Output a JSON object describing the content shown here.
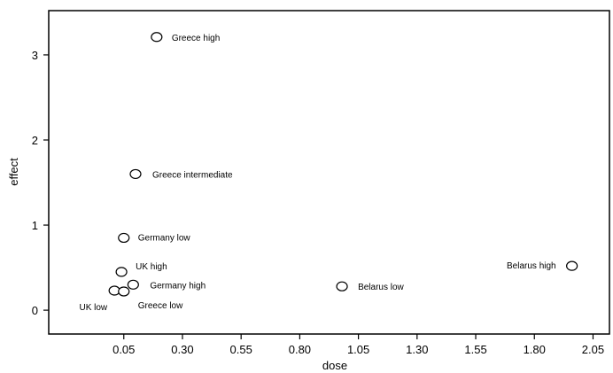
{
  "chart_data": {
    "type": "scatter",
    "xlabel": "dose",
    "ylabel": "effect",
    "xlim": [
      -0.27,
      2.12
    ],
    "ylim": [
      -0.28,
      3.52
    ],
    "xticks": [
      0.05,
      0.3,
      0.55,
      0.8,
      1.05,
      1.3,
      1.55,
      1.8,
      2.05
    ],
    "xtick_labels": [
      "0.05",
      "0.30",
      "0.55",
      "0.80",
      "1.05",
      "1.30",
      "1.55",
      "1.80",
      "2.05"
    ],
    "yticks": [
      0,
      1,
      2,
      3
    ],
    "ytick_labels": [
      "0",
      "1",
      "2",
      "3"
    ],
    "grid": false,
    "points": [
      {
        "label": "Greece high",
        "x": 0.19,
        "y": 3.21
      },
      {
        "label": "Greece intermediate",
        "x": 0.1,
        "y": 1.6
      },
      {
        "label": "Germany low",
        "x": 0.05,
        "y": 0.85
      },
      {
        "label": "UK high",
        "x": 0.04,
        "y": 0.45
      },
      {
        "label": "Germany high",
        "x": 0.09,
        "y": 0.3
      },
      {
        "label": "UK low",
        "x": 0.01,
        "y": 0.23
      },
      {
        "label": "Greece low",
        "x": 0.05,
        "y": 0.22
      },
      {
        "label": "Belarus low",
        "x": 0.98,
        "y": 0.28
      },
      {
        "label": "Belarus high",
        "x": 1.96,
        "y": 0.52
      }
    ]
  }
}
